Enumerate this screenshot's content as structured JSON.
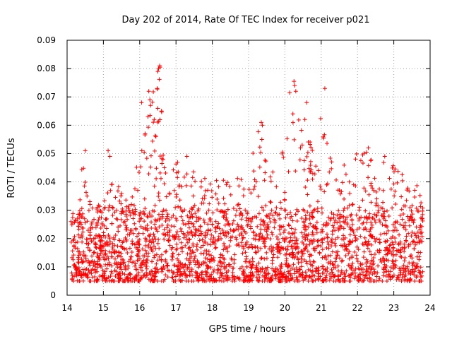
{
  "chart_data": {
    "type": "scatter",
    "title": "Day 202 of 2014, Rate Of TEC Index for receiver p021",
    "xlabel": "GPS time / hours",
    "ylabel": "ROTI / TECUs",
    "xlim": [
      14,
      24
    ],
    "ylim": [
      0,
      0.09
    ],
    "x_ticks": [
      "14",
      "15",
      "16",
      "17",
      "18",
      "19",
      "20",
      "21",
      "22",
      "23",
      "24"
    ],
    "y_ticks": [
      "0",
      "0.01",
      "0.02",
      "0.03",
      "0.04",
      "0.05",
      "0.06",
      "0.07",
      "0.08",
      "0.09"
    ],
    "grid": true,
    "marker": "+",
    "color": "#ff0000",
    "x_start": 14.1,
    "x_end": 23.8,
    "envelope_x": [
      14.1,
      14.3,
      14.45,
      14.5,
      14.6,
      15.0,
      15.15,
      15.3,
      15.5,
      15.8,
      16.0,
      16.3,
      16.55,
      16.7,
      16.9,
      17.3,
      17.7,
      18.0,
      18.5,
      18.9,
      19.3,
      19.6,
      19.9,
      20.1,
      20.3,
      20.6,
      20.8,
      21.1,
      21.4,
      21.8,
      22.2,
      22.5,
      22.8,
      23.1,
      23.5,
      23.8
    ],
    "envelope_y": [
      0.028,
      0.032,
      0.05,
      0.054,
      0.036,
      0.03,
      0.05,
      0.04,
      0.038,
      0.035,
      0.055,
      0.07,
      0.08,
      0.052,
      0.05,
      0.045,
      0.042,
      0.04,
      0.043,
      0.042,
      0.06,
      0.045,
      0.052,
      0.075,
      0.065,
      0.058,
      0.05,
      0.073,
      0.045,
      0.05,
      0.052,
      0.045,
      0.048,
      0.045,
      0.042,
      0.035
    ],
    "baseline_low": 0.005,
    "baseline_typical": 0.015,
    "points": [
      [
        14.55,
        0.035
      ],
      [
        15.13,
        0.051
      ],
      [
        15.18,
        0.049
      ],
      [
        16.05,
        0.068
      ],
      [
        16.25,
        0.072
      ],
      [
        16.28,
        0.069
      ],
      [
        16.3,
        0.067
      ],
      [
        16.5,
        0.079
      ],
      [
        16.52,
        0.08
      ],
      [
        16.55,
        0.081
      ],
      [
        16.56,
        0.0805
      ],
      [
        16.6,
        0.065
      ],
      [
        16.48,
        0.073
      ],
      [
        19.35,
        0.061
      ],
      [
        19.38,
        0.06
      ],
      [
        20.25,
        0.0755
      ],
      [
        20.27,
        0.074
      ],
      [
        20.3,
        0.072
      ],
      [
        20.22,
        0.064
      ],
      [
        20.6,
        0.068
      ],
      [
        21.1,
        0.073
      ],
      [
        14.5,
        0.051
      ],
      [
        16.4,
        0.062
      ],
      [
        20.55,
        0.062
      ],
      [
        17.3,
        0.049
      ],
      [
        22.3,
        0.052
      ],
      [
        22.75,
        0.049
      ]
    ],
    "point_count": 2600
  }
}
